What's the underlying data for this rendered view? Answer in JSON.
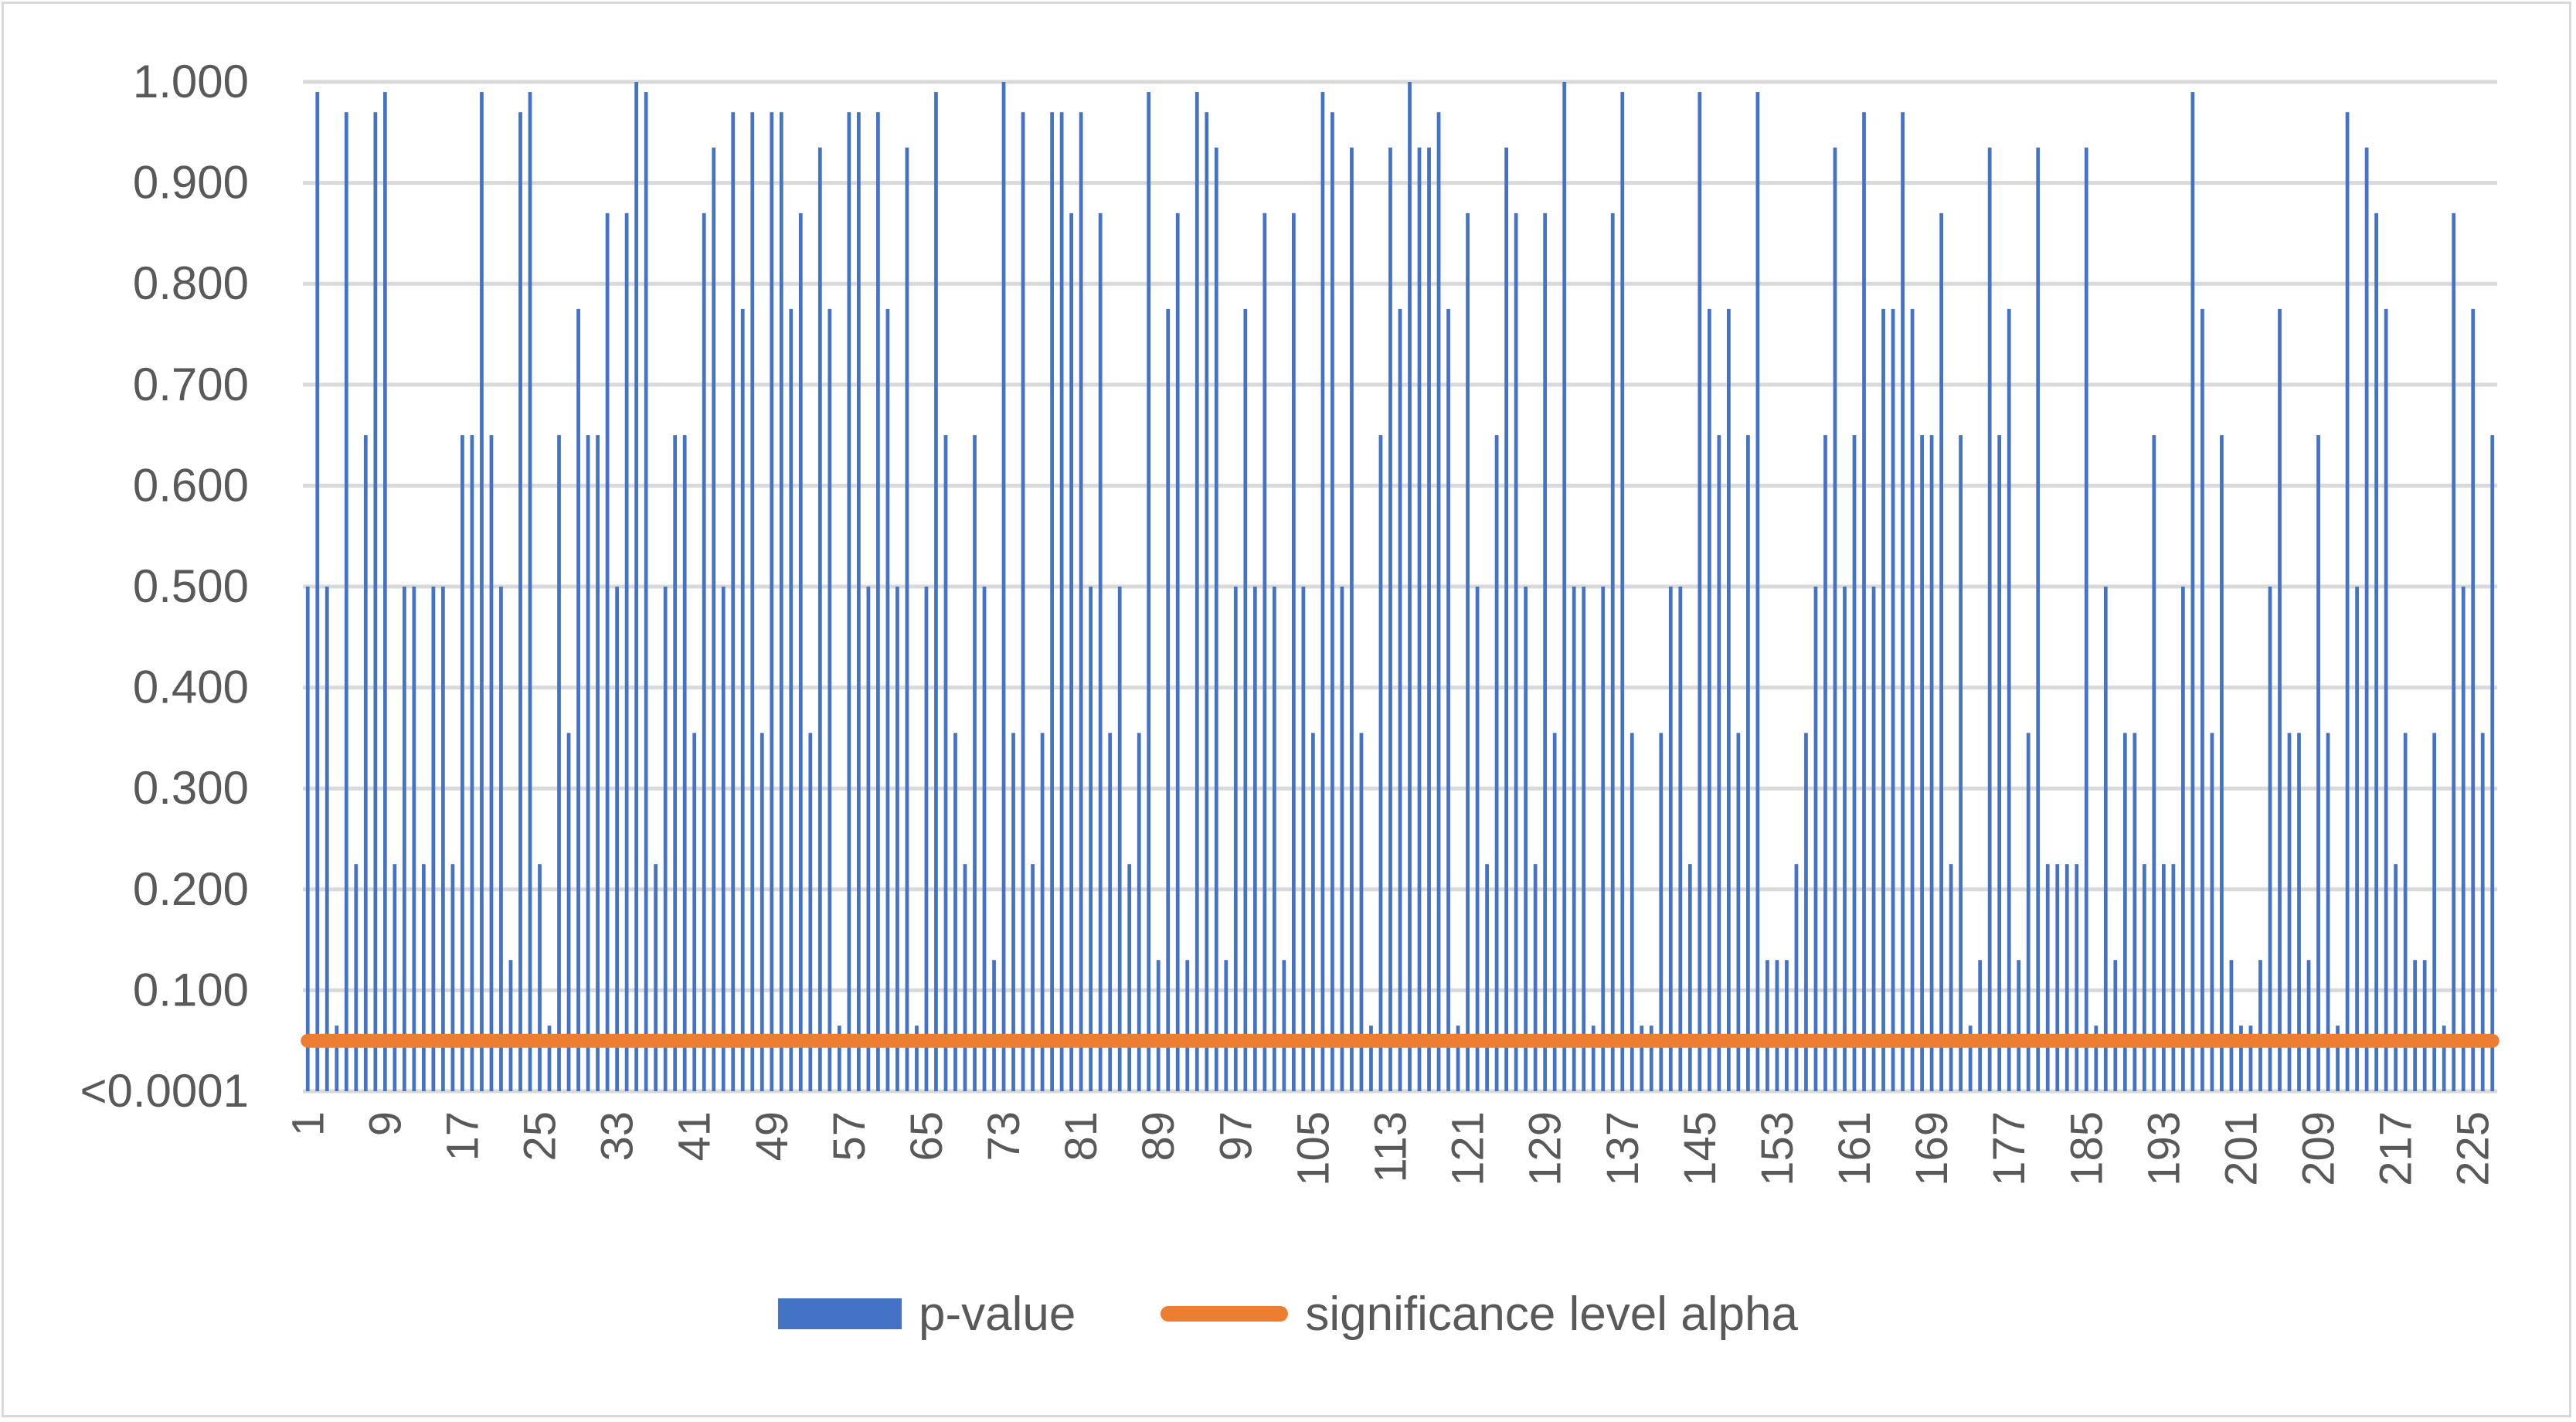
{
  "colors": {
    "bar": "#4472c4",
    "alpha_line": "#ed7d31",
    "grid": "#d9d9d9",
    "text": "#595959"
  },
  "legend": {
    "p_value_label": "p-value",
    "alpha_label": "significance level alpha"
  },
  "chart_data": {
    "type": "bar",
    "series": [
      {
        "name": "p-value",
        "values": [
          0.5,
          0.99,
          0.5,
          0.065,
          0.97,
          0.225,
          0.65,
          0.97,
          0.99,
          0.225,
          0.5,
          0.5,
          0.225,
          0.5,
          0.5,
          0.225,
          0.65,
          0.65,
          0.99,
          0.65,
          0.5,
          0.13,
          0.97,
          0.99,
          0.225,
          0.065,
          0.65,
          0.355,
          0.775,
          0.65,
          0.65,
          0.87,
          0.5,
          0.87,
          1.0,
          0.99,
          0.225,
          0.5,
          0.65,
          0.65,
          0.355,
          0.87,
          0.935,
          0.5,
          0.97,
          0.775,
          0.97,
          0.355,
          0.97,
          0.97,
          0.775,
          0.87,
          0.355,
          0.935,
          0.775,
          0.065,
          0.97,
          0.97,
          0.5,
          0.97,
          0.775,
          0.5,
          0.935,
          0.065,
          0.5,
          0.99,
          0.65,
          0.355,
          0.225,
          0.65,
          0.5,
          0.13,
          1.0,
          0.355,
          0.97,
          0.225,
          0.355,
          0.97,
          0.97,
          0.87,
          0.97,
          0.5,
          0.87,
          0.355,
          0.5,
          0.225,
          0.355,
          0.99,
          0.13,
          0.775,
          0.87,
          0.13,
          0.99,
          0.97,
          0.935,
          0.13,
          0.5,
          0.775,
          0.5,
          0.87,
          0.5,
          0.13,
          0.87,
          0.5,
          0.355,
          0.99,
          0.97,
          0.5,
          0.935,
          0.355,
          0.065,
          0.65,
          0.935,
          0.775,
          1.0,
          0.935,
          0.935,
          0.97,
          0.775,
          0.065,
          0.87,
          0.5,
          0.225,
          0.65,
          0.935,
          0.87,
          0.5,
          0.225,
          0.87,
          0.355,
          1.0,
          0.5,
          0.5,
          0.065,
          0.5,
          0.87,
          0.99,
          0.355,
          0.065,
          0.065,
          0.355,
          0.5,
          0.5,
          0.225,
          0.99,
          0.775,
          0.65,
          0.775,
          0.355,
          0.65,
          0.99,
          0.13,
          0.13,
          0.13,
          0.225,
          0.355,
          0.5,
          0.65,
          0.935,
          0.5,
          0.65,
          0.97,
          0.5,
          0.775,
          0.775,
          0.97,
          0.775,
          0.65,
          0.65,
          0.87,
          0.225,
          0.65,
          0.065,
          0.13,
          0.935,
          0.65,
          0.775,
          0.13,
          0.355,
          0.935,
          0.225,
          0.225,
          0.225,
          0.225,
          0.935,
          0.065,
          0.5,
          0.13,
          0.355,
          0.355,
          0.225,
          0.65,
          0.225,
          0.225,
          0.5,
          0.99,
          0.775,
          0.355,
          0.65,
          0.13,
          0.065,
          0.065,
          0.13,
          0.5,
          0.775,
          0.355,
          0.355,
          0.13,
          0.65,
          0.355,
          0.065,
          0.97,
          0.5,
          0.935,
          0.87,
          0.775,
          0.225,
          0.355,
          0.13,
          0.13,
          0.355,
          0.065,
          0.87,
          0.5,
          0.775,
          0.355,
          0.65
        ]
      },
      {
        "name": "significance level alpha",
        "values": [
          0.05
        ]
      }
    ],
    "x_tick_labels": [
      "1",
      "9",
      "17",
      "25",
      "33",
      "41",
      "49",
      "57",
      "65",
      "73",
      "81",
      "89",
      "97",
      "105",
      "113",
      "121",
      "129",
      "137",
      "145",
      "153",
      "161",
      "169",
      "177",
      "185",
      "193",
      "201",
      "209",
      "217",
      "225"
    ],
    "x_tick_step": 8,
    "y_tick_labels": [
      "<0.0001",
      "0.100",
      "0.200",
      "0.300",
      "0.400",
      "0.500",
      "0.600",
      "0.700",
      "0.800",
      "0.900",
      "1.000"
    ],
    "ylim": [
      0,
      1
    ],
    "grid": true,
    "legend_position": "bottom"
  }
}
